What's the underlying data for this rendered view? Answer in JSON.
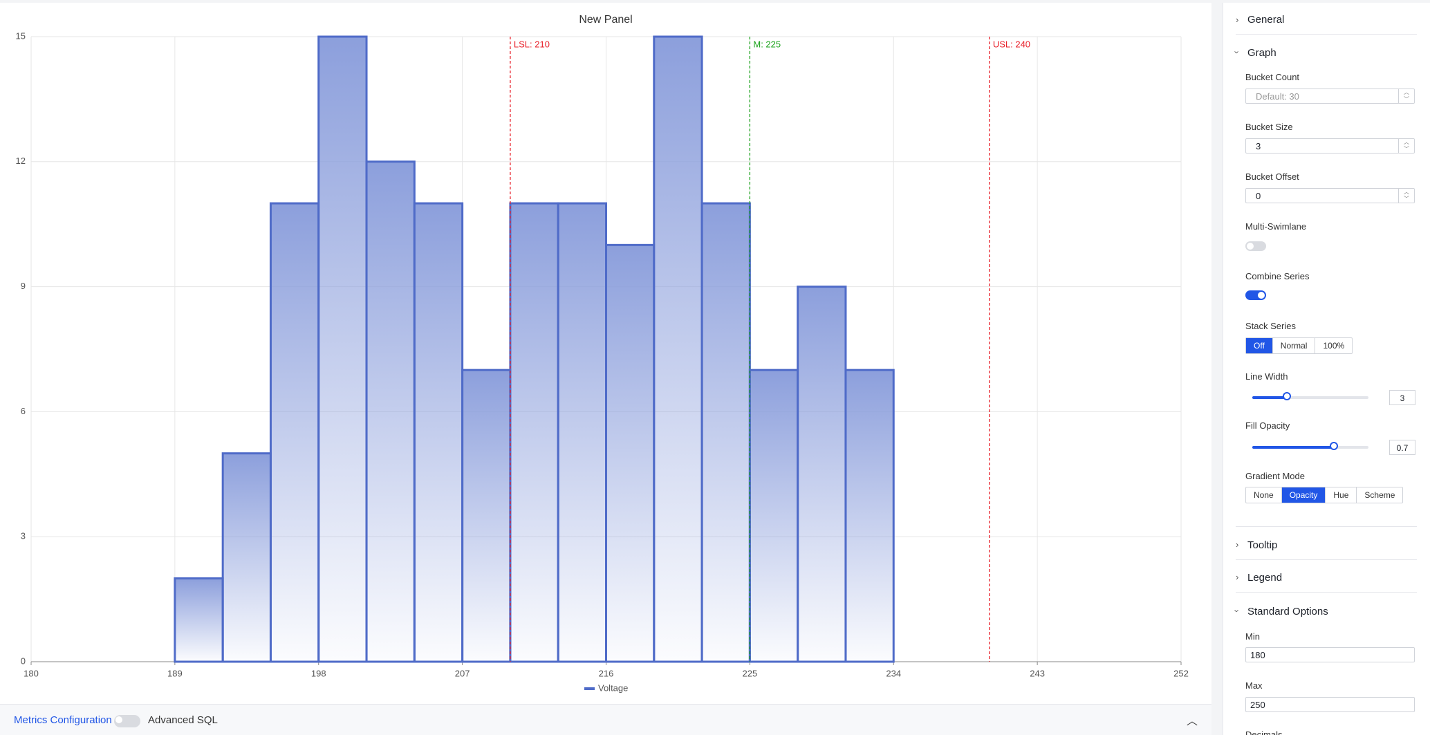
{
  "chart_data": {
    "type": "histogram",
    "title": "New Panel",
    "bins": [
      189,
      192,
      195,
      198,
      201,
      204,
      207,
      210,
      213,
      216,
      219,
      222,
      225,
      228,
      231,
      234
    ],
    "values": [
      2,
      5,
      11,
      15,
      12,
      11,
      7,
      11,
      11,
      10,
      15,
      11,
      7,
      9,
      7
    ],
    "series_name": "Voltage",
    "color": "#4f6bc8",
    "fill": "#8c9fdc",
    "xlim": [
      180,
      252
    ],
    "xticks": [
      180,
      189,
      198,
      207,
      216,
      225,
      234,
      243,
      252
    ],
    "ylim": [
      0,
      15
    ],
    "yticks": [
      0,
      3,
      6,
      9,
      12,
      15
    ],
    "grid": true,
    "reference_lines": [
      {
        "label": "LSL: 210",
        "value": 210,
        "color": "#e8202a"
      },
      {
        "label": "M: 225",
        "value": 225,
        "color": "#1aa31a"
      },
      {
        "label": "USL: 240",
        "value": 240,
        "color": "#e8202a"
      }
    ]
  },
  "panel": {
    "general": "General",
    "graph": "Graph",
    "bucket_count": {
      "label": "Bucket Count",
      "placeholder": "Default: 30"
    },
    "bucket_size": {
      "label": "Bucket Size",
      "value": 3
    },
    "bucket_offset": {
      "label": "Bucket Offset",
      "value": 0
    },
    "multi_swimlane": {
      "label": "Multi-Swimlane",
      "on": false
    },
    "combine_series": {
      "label": "Combine Series",
      "on": true
    },
    "stack_series": {
      "label": "Stack Series",
      "options": [
        "Off",
        "Normal",
        "100%"
      ],
      "selected": 0
    },
    "line_width": {
      "label": "Line Width",
      "value": 3
    },
    "fill_opacity": {
      "label": "Fill Opacity",
      "value": 0.7
    },
    "gradient_mode": {
      "label": "Gradient Mode",
      "options": [
        "None",
        "Opacity",
        "Hue",
        "Scheme"
      ],
      "selected": 1
    },
    "tooltip": "Tooltip",
    "legend": "Legend",
    "standard_options": "Standard Options",
    "min": {
      "label": "Min",
      "value": 180
    },
    "max": {
      "label": "Max",
      "value": 250
    },
    "decimals": "Decimals"
  },
  "footer": {
    "metrics_configuration": "Metrics Configuration",
    "advanced_sql": "Advanced SQL"
  }
}
